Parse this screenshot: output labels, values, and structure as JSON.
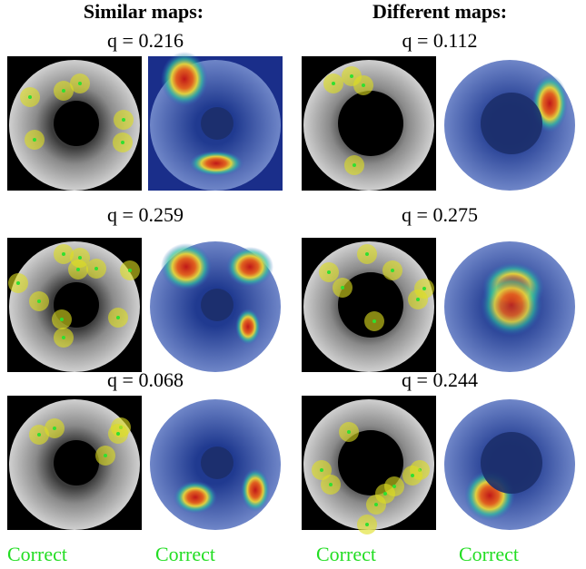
{
  "header": {
    "columns": [
      "Similar maps:",
      "Different maps:"
    ]
  },
  "panels": [
    {
      "label": "q = 0.216"
    },
    {
      "label": "q = 0.112"
    },
    {
      "label": "q = 0.259"
    },
    {
      "label": "q = 0.275"
    },
    {
      "label": "q = 0.068"
    },
    {
      "label": "q = 0.244"
    }
  ],
  "footer": [
    "Correct",
    "Correct",
    "Correct",
    "Correct"
  ]
}
